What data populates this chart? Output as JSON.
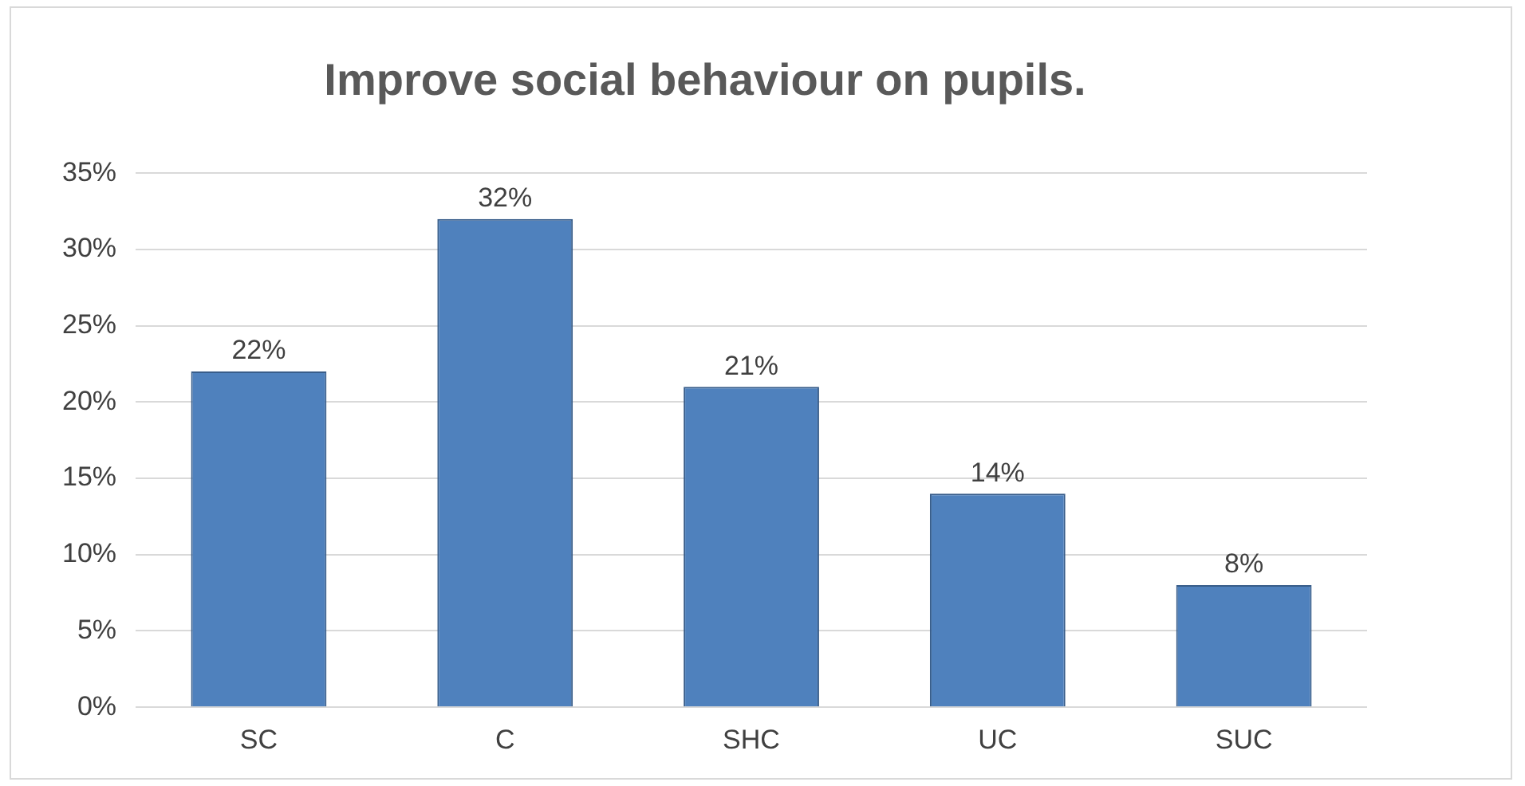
{
  "chart_data": {
    "type": "bar",
    "title": "Improve social behaviour on pupils.",
    "categories": [
      "SC",
      "C",
      "SHC",
      "UC",
      "SUC"
    ],
    "values": [
      22,
      32,
      21,
      14,
      8
    ],
    "value_labels": [
      "22%",
      "32%",
      "21%",
      "14%",
      "8%"
    ],
    "color": "#4f81bd",
    "ylim": [
      0,
      35
    ],
    "yticks": [
      {
        "value": 0,
        "label": "0%"
      },
      {
        "value": 5,
        "label": "5%"
      },
      {
        "value": 10,
        "label": "10%"
      },
      {
        "value": 15,
        "label": "15%"
      },
      {
        "value": 20,
        "label": "20%"
      },
      {
        "value": 25,
        "label": "25%"
      },
      {
        "value": 30,
        "label": "30%"
      },
      {
        "value": 35,
        "label": "35%"
      }
    ],
    "grid": "y",
    "legend": false
  }
}
